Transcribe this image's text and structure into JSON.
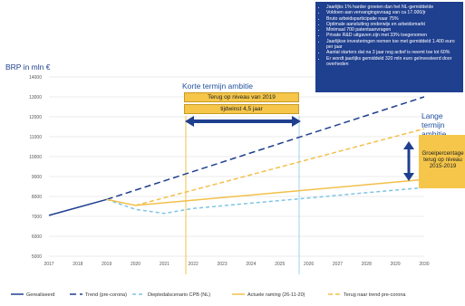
{
  "chart_data": {
    "type": "line",
    "ylabel": "BRP in mln €",
    "x": [
      2017,
      2018,
      2019,
      2020,
      2021,
      2022,
      2023,
      2024,
      2025,
      2026,
      2027,
      2028,
      2029,
      2030
    ],
    "yticks": [
      "5000",
      "6000",
      "7000",
      "8000",
      "9000",
      "10000",
      "11000",
      "12000",
      "13000",
      "14000"
    ],
    "ylim": [
      5000,
      14000
    ],
    "series": [
      {
        "name": "Gerealiseerd",
        "color": "#1f3f8f",
        "dash": "",
        "points": [
          [
            2017,
            7050
          ],
          [
            2018,
            7450
          ],
          [
            2019,
            7850
          ]
        ]
      },
      {
        "name": "Trend (pre-corona)",
        "color": "#1f3f8f",
        "dash": "7,4",
        "points": [
          [
            2019,
            7850
          ],
          [
            2030,
            13000
          ]
        ]
      },
      {
        "name": "Dieptedalscenario CPB (NL)",
        "color": "#7fc4e4",
        "dash": "4,3",
        "points": [
          [
            2019,
            7850
          ],
          [
            2020,
            7350
          ],
          [
            2021,
            7150
          ],
          [
            2022,
            7400
          ],
          [
            2030,
            8450
          ]
        ]
      },
      {
        "name": "Actuele raming (26-11-20)",
        "color": "#f2c04a",
        "dash": "",
        "points": [
          [
            2019,
            7850
          ],
          [
            2020,
            7550
          ],
          [
            2030,
            8850
          ]
        ]
      },
      {
        "name": "Terug naar trend pre-corona",
        "color": "#f2c04a",
        "dash": "5,3",
        "points": [
          [
            2020,
            7550
          ],
          [
            2030,
            11400
          ]
        ]
      }
    ]
  },
  "annotations": {
    "korte_title": "Korte termijn ambitie",
    "box_terug": "Terug op niveau van 2019",
    "box_tijdwinst": "tijdwinst 4,5 jaar",
    "lange_title_1": "Lange termijn",
    "lange_title_2": "ambitie",
    "grow_box_lines": [
      "Groeipercentage",
      "terug op niveau",
      "2015-2019"
    ]
  },
  "notes": [
    "Jaarlijks 1% harder groeien dan het NL-gemiddelde",
    "Voldoen aan vervangingsvraag van ca 17.000/jr",
    "Bruto arbeidsparticipatie naar 75%",
    "Optimale aansluiting onderwijs en arbeidsmarkt",
    "Minimaal 700 patentaanvragen",
    "Private R&D uitgaven zijn met 33% toegenomen",
    "Jaarlijkse investeringen nemen toe met gemiddeld 1.400 euro per jaar",
    "Aantal starters dat na 3 jaar nog actief is neemt toe tot 60%",
    "Er wordt jaarlijks gemiddeld 320 mln euro geïnvesteerd door overheden"
  ],
  "colors": {
    "navy": "#1f3f8f",
    "light_blue": "#7fc4e4",
    "gold": "#f2c04a",
    "box_gold": "#f5c64a"
  }
}
